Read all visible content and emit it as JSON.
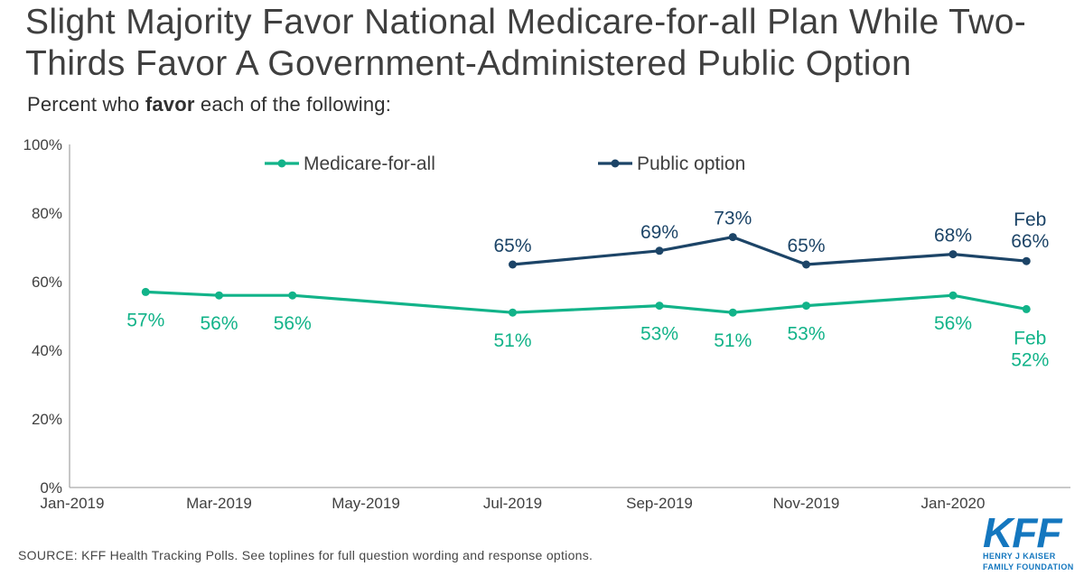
{
  "title": {
    "line1": "Slight Majority Favor National Medicare-for-all Plan While Two-",
    "line2": "Thirds Favor A Government-Administered Public Option"
  },
  "subtitle": {
    "prefix": "Percent who ",
    "emphasis": "favor",
    "suffix": " each of the following:"
  },
  "chart_data": {
    "type": "line",
    "title": "Percent who favor each of the following",
    "xlabel": "",
    "ylabel": "",
    "ylim": [
      0,
      100
    ],
    "grid": false,
    "legend_position": "top",
    "axis_color": "#A9A9A9",
    "tick_color": "#404040",
    "legend_text_color": "#3F3F3F",
    "x_axis_ticks": [
      {
        "month": 0,
        "label": "Jan-2019"
      },
      {
        "month": 2,
        "label": "Mar-2019"
      },
      {
        "month": 4,
        "label": "May-2019"
      },
      {
        "month": 6,
        "label": "Jul-2019"
      },
      {
        "month": 8,
        "label": "Sep-2019"
      },
      {
        "month": 10,
        "label": "Nov-2019"
      },
      {
        "month": 12,
        "label": "Jan-2020"
      }
    ],
    "y_axis_ticks": [
      {
        "value": 0,
        "label": "0%"
      },
      {
        "value": 20,
        "label": "20%"
      },
      {
        "value": 40,
        "label": "40%"
      },
      {
        "value": 60,
        "label": "60%"
      },
      {
        "value": 80,
        "label": "80%"
      },
      {
        "value": 100,
        "label": "100%"
      }
    ],
    "series": [
      {
        "name": "Medicare-for-all",
        "color": "#12B389",
        "label_position": "below",
        "points": [
          {
            "x": "Feb-2019",
            "month": 1,
            "value": 57,
            "label": "57%"
          },
          {
            "x": "Mar-2019",
            "month": 2,
            "value": 56,
            "label": "56%"
          },
          {
            "x": "Apr-2019",
            "month": 3,
            "value": 56,
            "label": "56%"
          },
          {
            "x": "Jul-2019",
            "month": 6,
            "value": 51,
            "label": "51%"
          },
          {
            "x": "Sep-2019",
            "month": 8,
            "value": 53,
            "label": "53%"
          },
          {
            "x": "Oct-2019",
            "month": 9,
            "value": 51,
            "label": "51%"
          },
          {
            "x": "Nov-2019",
            "month": 10,
            "value": 53,
            "label": "53%"
          },
          {
            "x": "Jan-2020",
            "month": 12,
            "value": 56,
            "label": "56%"
          },
          {
            "x": "Feb-2020",
            "month": 13,
            "value": 52,
            "label": "52%",
            "label_prefix": "Feb"
          }
        ]
      },
      {
        "name": "Public option",
        "color": "#1C4467",
        "label_position": "above",
        "points": [
          {
            "x": "Jul-2019",
            "month": 6,
            "value": 65,
            "label": "65%"
          },
          {
            "x": "Sep-2019",
            "month": 8,
            "value": 69,
            "label": "69%"
          },
          {
            "x": "Oct-2019",
            "month": 9,
            "value": 73,
            "label": "73%"
          },
          {
            "x": "Nov-2019",
            "month": 10,
            "value": 65,
            "label": "65%"
          },
          {
            "x": "Jan-2020",
            "month": 12,
            "value": 68,
            "label": "68%"
          },
          {
            "x": "Feb-2020",
            "month": 13,
            "value": 66,
            "label": "66%",
            "label_prefix": "Feb"
          }
        ]
      }
    ]
  },
  "source": "SOURCE: KFF Health Tracking Polls. See toplines for full question wording and response options.",
  "logo": {
    "name": "KFF",
    "sub1": "HENRY J KAISER",
    "sub2": "FAMILY FOUNDATION",
    "color": "#1477BF"
  }
}
